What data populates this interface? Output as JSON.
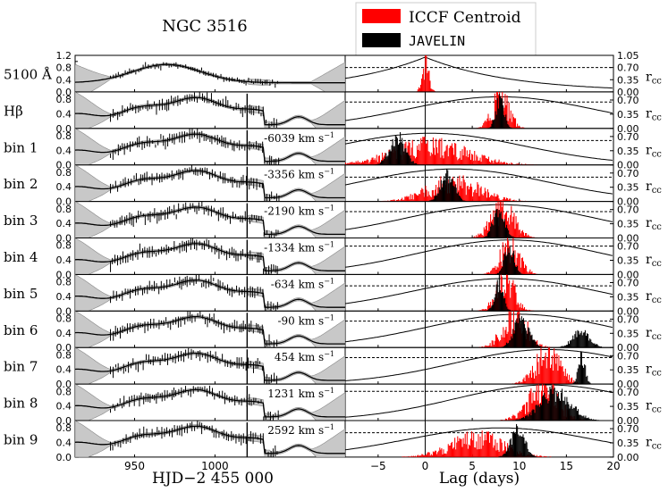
{
  "chart_data": {
    "type": "multi-panel",
    "title": "NGC 3516",
    "legend": {
      "position": "top-right",
      "entries": [
        {
          "label": "ICCF Centroid",
          "color": "#ff0000"
        },
        {
          "label": "JAVELIN",
          "color": "#000000"
        }
      ]
    },
    "left_xlabel": "HJD−2 455 000",
    "left_xticks": [
      950,
      1000
    ],
    "left_xlim": [
      913,
      1081
    ],
    "right_xlabel": "Lag (days)",
    "right_xticks": [
      -5,
      0,
      5,
      10,
      15,
      20
    ],
    "right_xlim": [
      -8.5,
      20
    ],
    "right_ylabel": "r",
    "right_ylabel_sub": "cc",
    "panels": [
      {
        "label": "5100 Å",
        "velocity": "",
        "left_ylim": [
          0,
          1.2
        ],
        "left_yticks": [
          "0.0",
          "0.4",
          "0.8",
          "1.2"
        ],
        "left_yticks_minor": [
          "0.2",
          "0.6",
          "1.0"
        ],
        "right_ylim": [
          0,
          1.05
        ],
        "right_yticks": [
          "0.00",
          "0.35",
          "0.70",
          "1.05"
        ],
        "iccf_peak": 0.0,
        "iccf_width": 0.35,
        "jav_peak": null,
        "jav_width": 0,
        "ccf_peak_lag": 0.0,
        "ccf_max": 1.0,
        "dashed": 0.7
      },
      {
        "label": "Hβ",
        "velocity": "",
        "left_ylim": [
          0,
          1.0
        ],
        "left_yticks": [
          "0.0",
          "0.4",
          "0.8"
        ],
        "right_ylim": [
          0,
          0.9
        ],
        "right_yticks": [
          "0.00",
          "0.35",
          "0.70"
        ],
        "iccf_peak": 8.0,
        "iccf_width": 0.9,
        "jav_peak": 7.9,
        "jav_width": 0.45,
        "ccf_peak_lag": 8.0,
        "ccf_max": 0.78,
        "dashed": 0.65
      },
      {
        "label": "bin 1",
        "velocity": "-6039",
        "left_ylim": [
          0,
          1.0
        ],
        "left_yticks": [
          "0.0",
          "0.4",
          "0.8"
        ],
        "right_ylim": [
          0,
          0.9
        ],
        "right_yticks": [
          "0.00",
          "0.35",
          "0.70"
        ],
        "iccf_peak": 0.5,
        "iccf_width": 4.0,
        "jav_peak": -3.0,
        "jav_width": 0.8,
        "ccf_peak_lag": 0.5,
        "ccf_max": 0.78,
        "dashed": 0.6
      },
      {
        "label": "bin 2",
        "velocity": "-3356",
        "left_ylim": [
          0,
          1.0
        ],
        "left_yticks": [
          "0.0",
          "0.4",
          "0.8"
        ],
        "right_ylim": [
          0,
          0.9
        ],
        "right_yticks": [
          "0.00",
          "0.35",
          "0.70"
        ],
        "iccf_peak": 3.0,
        "iccf_width": 2.8,
        "jav_peak": 2.3,
        "jav_width": 0.7,
        "ccf_peak_lag": 3.0,
        "ccf_max": 0.8,
        "dashed": 0.6
      },
      {
        "label": "bin 3",
        "velocity": "-2190",
        "left_ylim": [
          0,
          1.0
        ],
        "left_yticks": [
          "0.0",
          "0.4",
          "0.8"
        ],
        "right_ylim": [
          0,
          0.9
        ],
        "right_yticks": [
          "0.00",
          "0.35",
          "0.70"
        ],
        "iccf_peak": 8.2,
        "iccf_width": 1.2,
        "jav_peak": 7.8,
        "jav_width": 0.6,
        "ccf_peak_lag": 8.0,
        "ccf_max": 0.82,
        "dashed": 0.65
      },
      {
        "label": "bin 4",
        "velocity": "-1334",
        "left_ylim": [
          0,
          1.0
        ],
        "left_yticks": [
          "0.0",
          "0.4",
          "0.8"
        ],
        "right_ylim": [
          0,
          0.9
        ],
        "right_yticks": [
          "0.00",
          "0.35",
          "0.70"
        ],
        "iccf_peak": 9.0,
        "iccf_width": 1.0,
        "jav_peak": 8.9,
        "jav_width": 0.5,
        "ccf_peak_lag": 9.0,
        "ccf_max": 0.85,
        "dashed": 0.7
      },
      {
        "label": "bin 5",
        "velocity": "-634",
        "left_ylim": [
          0,
          1.0
        ],
        "left_yticks": [
          "0.0",
          "0.4",
          "0.8"
        ],
        "right_ylim": [
          0,
          0.9
        ],
        "right_yticks": [
          "0.00",
          "0.35",
          "0.70"
        ],
        "iccf_peak": 8.5,
        "iccf_width": 1.0,
        "jav_peak": 7.8,
        "jav_width": 0.45,
        "ccf_peak_lag": 8.5,
        "ccf_max": 0.8,
        "dashed": 0.62
      },
      {
        "label": "bin 6",
        "velocity": "-90",
        "left_ylim": [
          0,
          1.0
        ],
        "left_yticks": [
          "0.0",
          "0.4",
          "0.8"
        ],
        "right_ylim": [
          0,
          0.9
        ],
        "right_yticks": [
          "0.00",
          "0.35",
          "0.70"
        ],
        "iccf_peak": 9.5,
        "iccf_width": 1.3,
        "jav_peak": 10.2,
        "jav_width": 0.8,
        "jav_peak2": 16.5,
        "jav_width2": 0.9,
        "ccf_peak_lag": 10.0,
        "ccf_max": 0.82,
        "dashed": 0.65
      },
      {
        "label": "bin 7",
        "velocity": "454",
        "left_ylim": [
          0,
          1.0
        ],
        "left_yticks": [
          "0.0",
          "0.4",
          "0.8"
        ],
        "right_ylim": [
          0,
          0.9
        ],
        "right_yticks": [
          "0.00",
          "0.35",
          "0.70"
        ],
        "iccf_peak": 13.0,
        "iccf_width": 1.3,
        "jav_peak": 16.6,
        "jav_width": 0.35,
        "ccf_peak_lag": 13.0,
        "ccf_max": 0.85,
        "dashed": 0.65
      },
      {
        "label": "bin 8",
        "velocity": "1231",
        "left_ylim": [
          0,
          1.0
        ],
        "left_yticks": [
          "0.0",
          "0.4",
          "0.8"
        ],
        "right_ylim": [
          0,
          0.9
        ],
        "right_yticks": [
          "0.00",
          "0.35",
          "0.70"
        ],
        "iccf_peak": 12.5,
        "iccf_width": 1.6,
        "jav_peak": 13.8,
        "jav_width": 1.6,
        "ccf_peak_lag": 13.0,
        "ccf_max": 0.88,
        "dashed": 0.72
      },
      {
        "label": "bin 9",
        "velocity": "2592",
        "left_ylim": [
          0,
          1.0
        ],
        "left_yticks": [
          "0.0",
          "0.4",
          "0.8"
        ],
        "right_ylim": [
          0,
          0.9
        ],
        "right_yticks": [
          "0.00",
          "0.35",
          "0.70"
        ],
        "iccf_peak": 5.5,
        "iccf_width": 2.8,
        "jav_peak": 9.8,
        "jav_width": 0.7,
        "ccf_peak_lag": 8.0,
        "ccf_max": 0.72,
        "dashed": 0.6
      }
    ],
    "velocity_unit": "km s",
    "velocity_unit_sup": "−1"
  }
}
